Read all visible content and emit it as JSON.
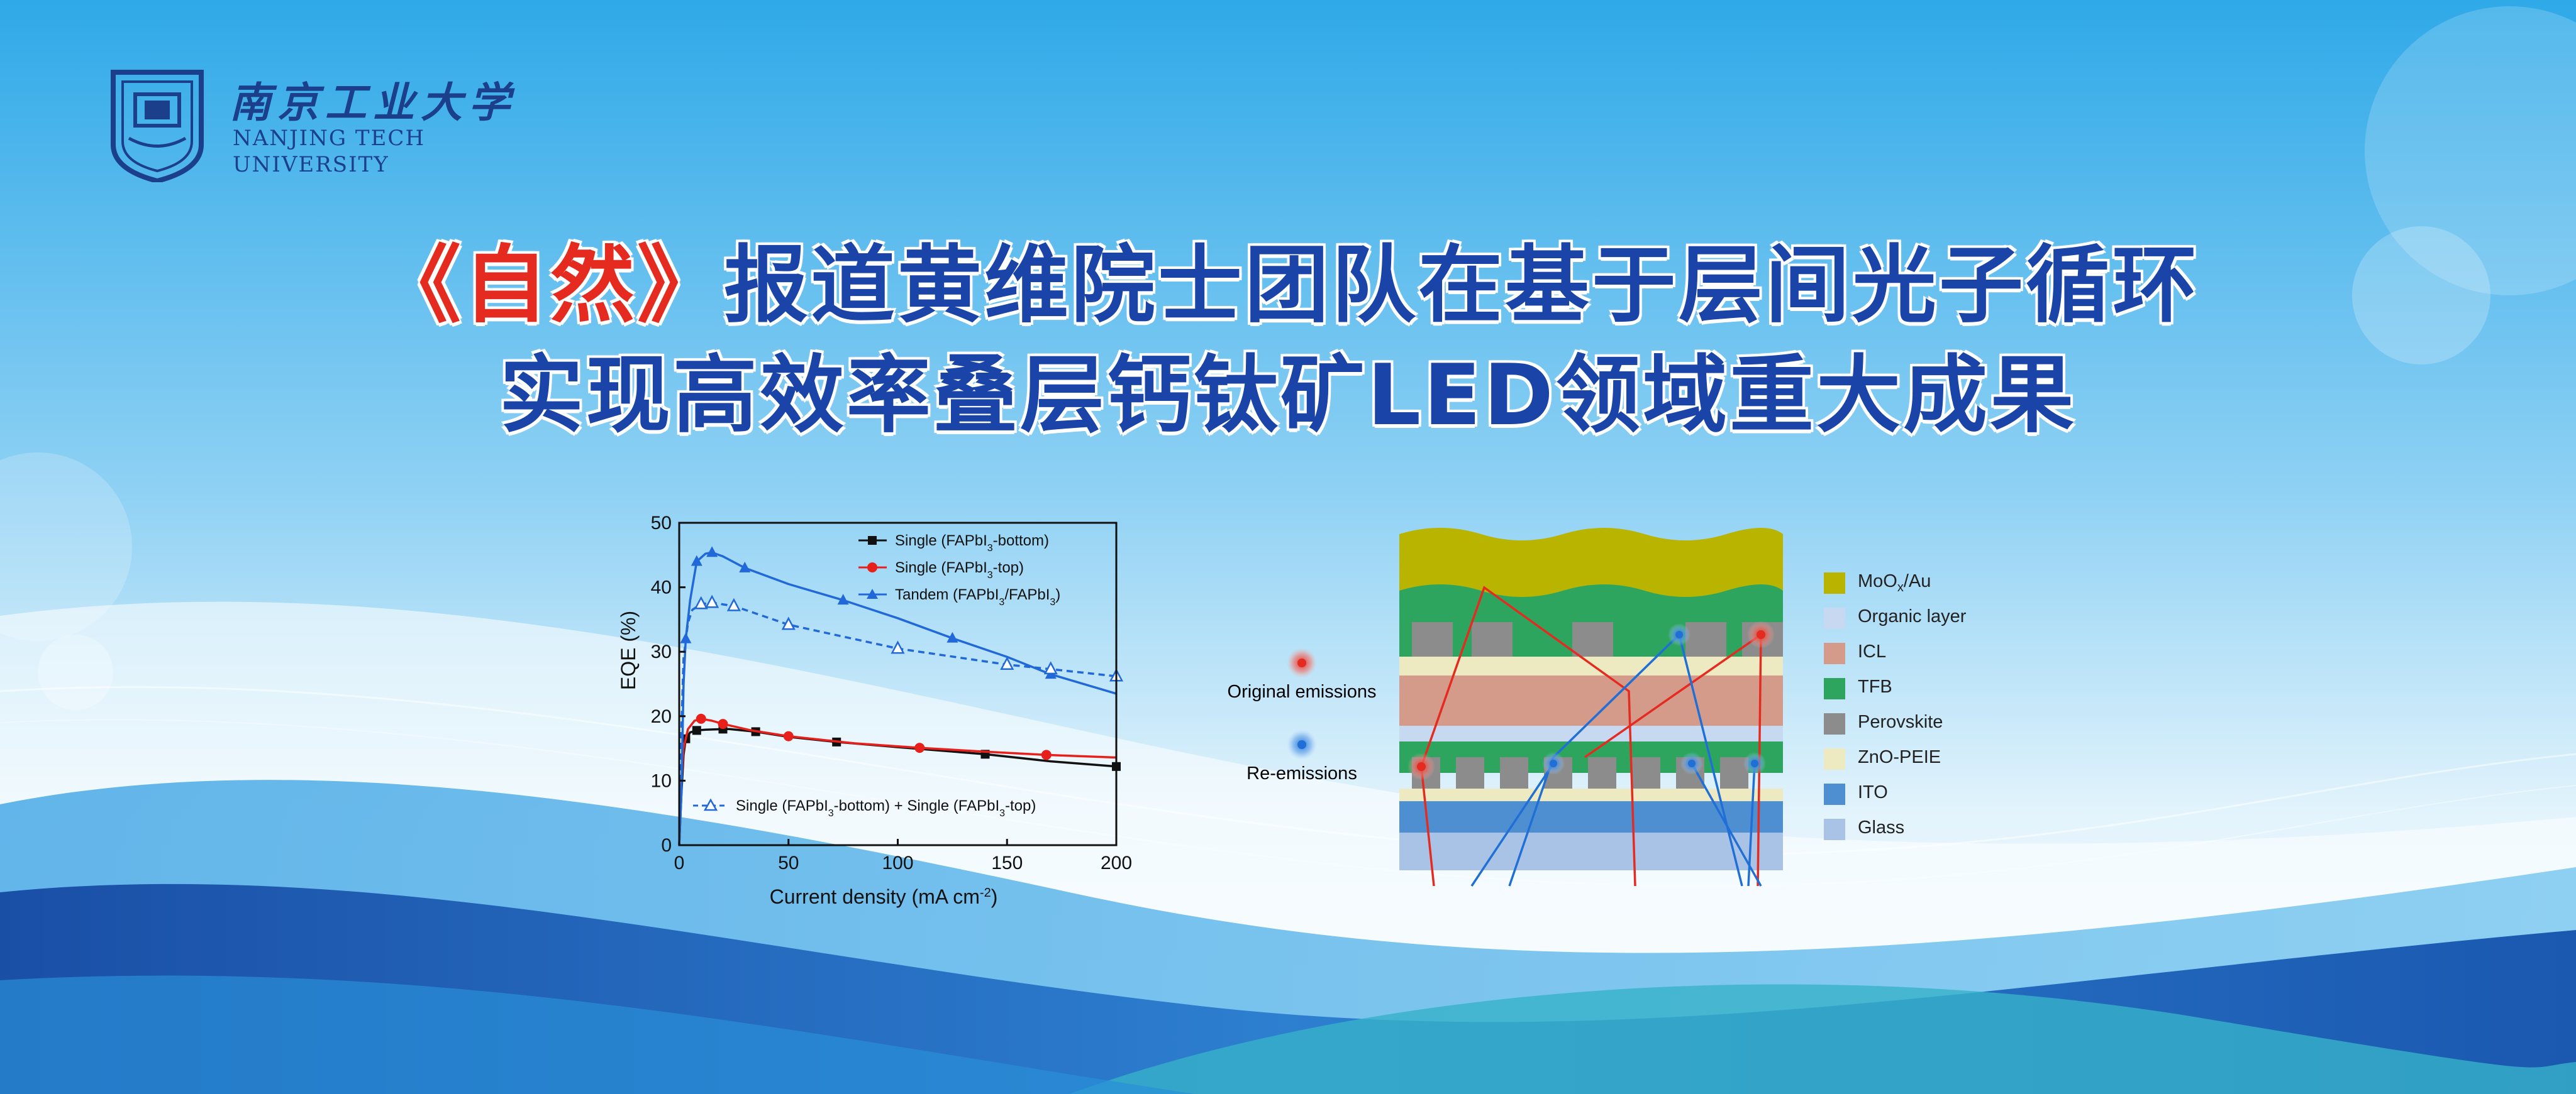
{
  "logo": {
    "name_cn": "南京工业大学",
    "name_en_line1": "NANJING TECH",
    "name_en_line2": "UNIVERSITY"
  },
  "headline": {
    "journal": "《自然》",
    "line1_rest": "报道黄维院士团队在基于层间光子循环",
    "line2": "实现高效率叠层钙钛矿LED领域重大成果"
  },
  "chart_data": {
    "type": "line",
    "xlabel": "Current density (mA cm",
    "xlabel_sup": "-2",
    "xlabel_end": ")",
    "ylabel": "EQE (%)",
    "xlim": [
      0,
      200
    ],
    "ylim": [
      0,
      50
    ],
    "xticks": [
      0,
      50,
      100,
      150,
      200
    ],
    "yticks": [
      0,
      10,
      20,
      30,
      40,
      50
    ],
    "grid": false,
    "legend_position": "top-right",
    "series": [
      {
        "name": "Single (FAPbI3-bottom)",
        "color": "#111111",
        "marker": "square",
        "dashed": false,
        "x": [
          0,
          1,
          2,
          3,
          5,
          8,
          12,
          20,
          23,
          35,
          50,
          72,
          100,
          140,
          170,
          200
        ],
        "y": [
          0,
          8,
          14,
          16.5,
          17.5,
          17.8,
          17.9,
          18,
          18,
          17.6,
          16.8,
          16,
          15.2,
          14.1,
          13,
          12.2
        ]
      },
      {
        "name": "Single (FAPbI3-top)",
        "color": "#e8201b",
        "marker": "circle",
        "dashed": false,
        "x": [
          0,
          1,
          2,
          4,
          7,
          10,
          15,
          20,
          33,
          50,
          80,
          110,
          140,
          168,
          200
        ],
        "y": [
          0,
          10,
          15,
          18,
          19.3,
          19.6,
          19.3,
          18.8,
          17.8,
          16.9,
          15.8,
          15.1,
          14.5,
          14,
          13.6
        ]
      },
      {
        "name": "Tandem (FAPbI3/FAPbI3)",
        "color": "#2168d9",
        "marker": "triangle",
        "dashed": false,
        "x": [
          0,
          1,
          2,
          3,
          5,
          8,
          12,
          15,
          20,
          30,
          50,
          75,
          100,
          125,
          150,
          170,
          200
        ],
        "y": [
          0,
          8,
          25,
          32,
          38,
          44,
          45.2,
          45.4,
          44.8,
          43,
          40.5,
          38,
          35.2,
          32.1,
          29.2,
          26.5,
          23.5
        ]
      },
      {
        "name": "Single (FAPbI3-bottom) + Single (FAPbI3-top)",
        "color": "#2168d9",
        "marker": "open-triangle",
        "dashed": true,
        "x": [
          0,
          1,
          2,
          4,
          6,
          10,
          15,
          25,
          50,
          100,
          150,
          170,
          200
        ],
        "y": [
          0,
          18,
          29,
          34.5,
          36.5,
          37.4,
          37.6,
          37.1,
          34.2,
          30.5,
          28,
          27.3,
          26.2
        ]
      }
    ],
    "legend_labels": {
      "bottom": {
        "pre": "Single (FAPbI",
        "sub": "3",
        "post": "-bottom)"
      },
      "top": {
        "pre": "Single (FAPbI",
        "sub": "3",
        "post": "-top)"
      },
      "tandem_pre": "Tandem (FAPbI",
      "tandem_sub1": "3",
      "tandem_mid": "/FAPbI",
      "tandem_sub2": "3",
      "tandem_post": ")",
      "sum_pre": "Single (FAPbI",
      "sum_sub1": "3",
      "sum_mid": "-bottom) + Single (FAPbI",
      "sum_sub2": "3",
      "sum_post": "-top)"
    }
  },
  "diagram": {
    "original_emissions": "Original emissions",
    "re_emissions": "Re-emissions",
    "layers": [
      {
        "label_main": "MoO",
        "label_sub": "x",
        "label_rest": "/Au",
        "color": "#b8b400"
      },
      {
        "label_main": "Organic layer",
        "label_sub": "",
        "label_rest": "",
        "color": "#c6d9f1"
      },
      {
        "label_main": "ICL",
        "label_sub": "",
        "label_rest": "",
        "color": "#d49a8a"
      },
      {
        "label_main": "TFB",
        "label_sub": "",
        "label_rest": "",
        "color": "#2da55e"
      },
      {
        "label_main": "Perovskite",
        "label_sub": "",
        "label_rest": "",
        "color": "#8c8c8c"
      },
      {
        "label_main": "ZnO-PEIE",
        "label_sub": "",
        "label_rest": "",
        "color": "#ede9c0"
      },
      {
        "label_main": "ITO",
        "label_sub": "",
        "label_rest": "",
        "color": "#4e8fd2"
      },
      {
        "label_main": "Glass",
        "label_sub": "",
        "label_rest": "",
        "color": "#a9c3e6"
      }
    ]
  },
  "colors": {
    "sky_top": "#2fa9e8",
    "sky_bottom": "#dff1fb",
    "wave_dark": "#1b58b0",
    "title_blue": "#1a44a7",
    "journal_red": "#e52a20"
  }
}
